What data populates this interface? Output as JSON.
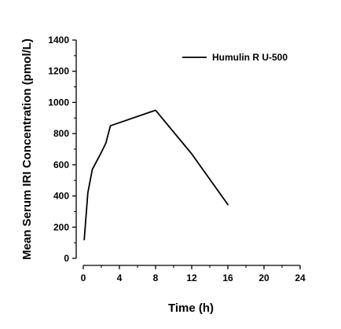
{
  "chart_data": {
    "type": "line",
    "xlabel": "Time (h)",
    "ylabel": "Mean Serum IRI Concentration (pmol/L)",
    "xlim": [
      0,
      24
    ],
    "ylim": [
      0,
      1400
    ],
    "x_ticks": [
      0,
      4,
      8,
      12,
      16,
      20,
      24
    ],
    "y_ticks": [
      0,
      200,
      400,
      600,
      800,
      1000,
      1200,
      1400
    ],
    "grid": false,
    "legend_position": "top-right",
    "series": [
      {
        "name": "Humulin R U-500",
        "color": "#000000",
        "x": [
          0.1,
          0.5,
          1,
          2,
          2.5,
          3,
          8,
          12,
          16
        ],
        "y": [
          120,
          420,
          570,
          680,
          740,
          850,
          950,
          670,
          345
        ]
      }
    ]
  }
}
